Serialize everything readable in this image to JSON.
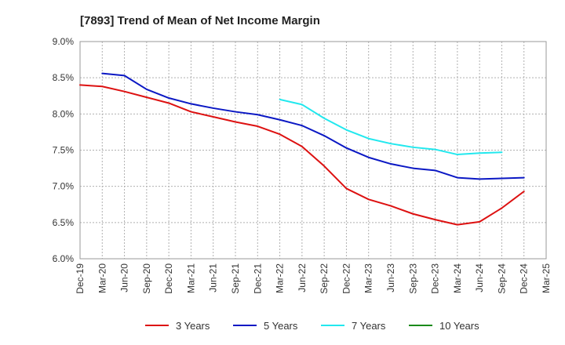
{
  "chart_data": {
    "type": "line",
    "title": "[7893]  Trend of Mean of Net Income Margin",
    "xlabel": "",
    "ylabel": "",
    "ylim": [
      6.0,
      9.0
    ],
    "y_ticks": [
      "6.0%",
      "6.5%",
      "7.0%",
      "7.5%",
      "8.0%",
      "8.5%",
      "9.0%"
    ],
    "y_tick_values": [
      6.0,
      6.5,
      7.0,
      7.5,
      8.0,
      8.5,
      9.0
    ],
    "grid": true,
    "legend_position": "bottom",
    "x_tick_labels": [
      "Dec-19",
      "Mar-20",
      "Jun-20",
      "Sep-20",
      "Dec-20",
      "Mar-21",
      "Jun-21",
      "Sep-21",
      "Dec-21",
      "Mar-22",
      "Jun-22",
      "Sep-22",
      "Dec-22",
      "Mar-23",
      "Jun-23",
      "Sep-23",
      "Dec-23",
      "Mar-24",
      "Jun-24",
      "Sep-24",
      "Dec-24",
      "Mar-25"
    ],
    "series": [
      {
        "name": "3 Years",
        "color": "#dd1111",
        "start_index": 0,
        "values": [
          8.4,
          8.38,
          8.31,
          8.23,
          8.15,
          8.03,
          7.96,
          7.89,
          7.83,
          7.72,
          7.55,
          7.28,
          6.97,
          6.82,
          6.73,
          6.62,
          6.54,
          6.47,
          6.51,
          6.7,
          6.93
        ]
      },
      {
        "name": "5 Years",
        "color": "#0b18c4",
        "start_index": 1,
        "values": [
          8.56,
          8.53,
          8.34,
          8.22,
          8.14,
          8.08,
          8.03,
          7.99,
          7.92,
          7.84,
          7.7,
          7.53,
          7.4,
          7.31,
          7.25,
          7.22,
          7.12,
          7.1,
          7.11,
          7.12
        ]
      },
      {
        "name": "7 Years",
        "color": "#22e8ee",
        "start_index": 9,
        "values": [
          8.2,
          8.13,
          7.94,
          7.78,
          7.66,
          7.59,
          7.54,
          7.51,
          7.44,
          7.46,
          7.47
        ]
      },
      {
        "name": "10 Years",
        "color": "#1a8a1a",
        "start_index": 0,
        "values": []
      }
    ]
  }
}
